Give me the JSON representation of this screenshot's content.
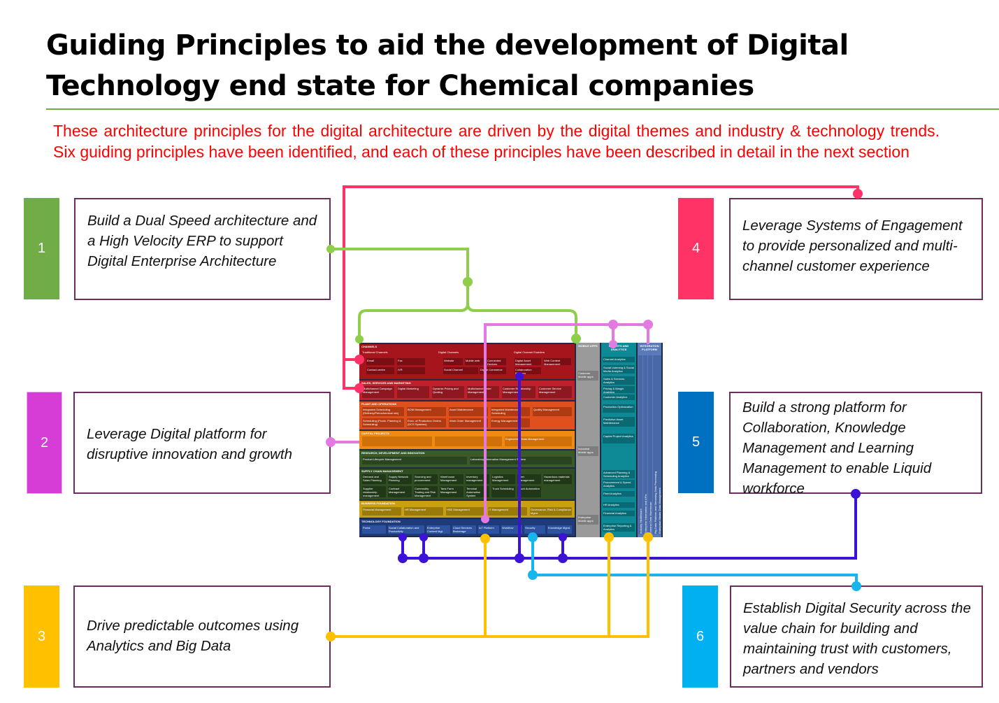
{
  "title": "Guiding Principles to aid the development of Digital Technology end state for Chemical companies",
  "intro": "These architecture principles for the digital architecture are driven by the digital themes and industry & technology trends. Six guiding principles have been identified, and each of these principles have been described in detail in the next section",
  "principles": [
    {
      "num": "1",
      "text": "Build a Dual Speed architecture and a High Velocity ERP to support Digital Enterprise Architecture",
      "color": "#70ad47"
    },
    {
      "num": "2",
      "text": "Leverage Digital platform for disruptive innovation and growth",
      "color": "#d63cd6"
    },
    {
      "num": "3",
      "text": "Drive predictable outcomes using Analytics and Big Data",
      "color": "#ffc000"
    },
    {
      "num": "4",
      "text": "Leverage Systems of Engagement to provide personalized and multi-channel customer experience",
      "color": "#ff3366"
    },
    {
      "num": "5",
      "text": "Build a strong platform for Collaboration,  Knowledge Management and Learning Management  to enable Liquid workforce",
      "color": "#0070c0"
    },
    {
      "num": "6",
      "text": "Establish Digital Security across the value chain for building and maintaining trust with customers, partners and vendors",
      "color": "#00b0f0"
    }
  ],
  "connector_colors": {
    "p1": "#8fce4a",
    "p2": "#e27ae2",
    "p3": "#ffc000",
    "p4": "#ff3366",
    "p5": "#3b12d6",
    "p6": "#18b4ec"
  },
  "architecture": {
    "bands": [
      {
        "label": "CHANNELS",
        "color": "#a6141c",
        "cells": [
          "Traditional Channels",
          "Email",
          "Fax",
          "Contact centre",
          "IVR",
          "Digital Channels",
          "Website",
          "Mobile web",
          "Connected Devices",
          "Social Channel",
          "Digital Commerce",
          "Digital Channel Enablers",
          "Digital Asset Management",
          "Web Content Management",
          "Collaboration Platform"
        ]
      },
      {
        "label": "SALES, SERVICES AND MARKETING",
        "color": "#c0202c",
        "cells": [
          "Multichannel Campaign Management",
          "Digital Marketing",
          "Dynamic Pricing and Quoting",
          "Multichannel Order Management",
          "Customer Relationship Management",
          "Customer Service Management"
        ]
      },
      {
        "label": "PLANT AND OPERATIONS",
        "color": "#e0501c",
        "cells": [
          "Integrated Scheduling (Refinery/Petrochemical mix)",
          "BOM Management",
          "Asset Maintenance",
          "Integrated Maintenance Scheduling",
          "Quality Management",
          "Scheduling (Prodn. Planning & Scheduling)",
          "Exec. of Production Orders (DCS Systems)",
          "Work Order Management",
          "Energy Management"
        ]
      },
      {
        "label": "CAPITAL PROJECTS",
        "color": "#f08a10",
        "cells": [
          "Engineering Data Management"
        ]
      },
      {
        "label": "RESEARCH, DEVELOPMENT AND INNOVATION",
        "color": "#3a5a2a",
        "cells": [
          "Product Lifecycle Management",
          "Laboratory Information Management System"
        ]
      },
      {
        "label": "SUPPLY CHAIN MANAGEMENT",
        "color": "#2f4f22",
        "cells": [
          "Demand and Sales Planning",
          "Supply Network Planning",
          "Sourcing and procurement",
          "Warehouse Management",
          "Inventory management",
          "Logistics Management",
          "Fleet management",
          "Hazardous materials management",
          "Supplier relationship management",
          "Contract Management",
          "Commodity Trading and Risk Management",
          "Tank Farm Management",
          "Terminal Automation System",
          "Truck Scheduling",
          "Truck Automation"
        ]
      },
      {
        "label": "BUSINESS FOUNDATION",
        "color": "#c8a010",
        "cells": [
          "Financial Management",
          "HR Management",
          "HSE Management",
          "IT Management",
          "Governance, Risk & Compliance Mgmt."
        ]
      },
      {
        "label": "TECHNOLOGY FOUNDATION",
        "color": "#1e3a78",
        "cells": [
          "Portal",
          "Social Collaboration and Productivity",
          "Enterprise Content Mgt.",
          "Cloud Services Brokerage",
          "IoT Platform",
          "Workflow",
          "Security",
          "Knowledge Mgmt."
        ]
      }
    ],
    "columns": [
      {
        "label": "MOBILE APPS",
        "cells": [
          "Customer Mobile apps",
          "Industrial Mobile apps",
          "Enterprise Mobile apps"
        ]
      },
      {
        "label": "INSIGHTS AND ANALYTICS",
        "cells": [
          "Channel Analytics",
          "Social Listening & Social Media Analytics",
          "Sales & Services Analytics",
          "Pricing & Margin Analytics",
          "Customer Analytics",
          "Production Optimization",
          "Predictive Asset Maintenance",
          "Capital Project Analytics",
          "Advanced Planning & Scheduling Analytics",
          "Procurement & Spend Analytics",
          "Fleet Analytics",
          "HR Analytics",
          "Financial Analytics",
          "Enterprise Reporting & Analytics"
        ]
      },
      {
        "label": "INTEGRATION PLATFORM",
        "cells": [
          "Industry Middleware",
          "Enterprise Information and APIs",
          "External Data Warehouse",
          "Big Data Platform and Streaming Data Processing",
          "Enterprise Master Data Management"
        ]
      }
    ]
  }
}
